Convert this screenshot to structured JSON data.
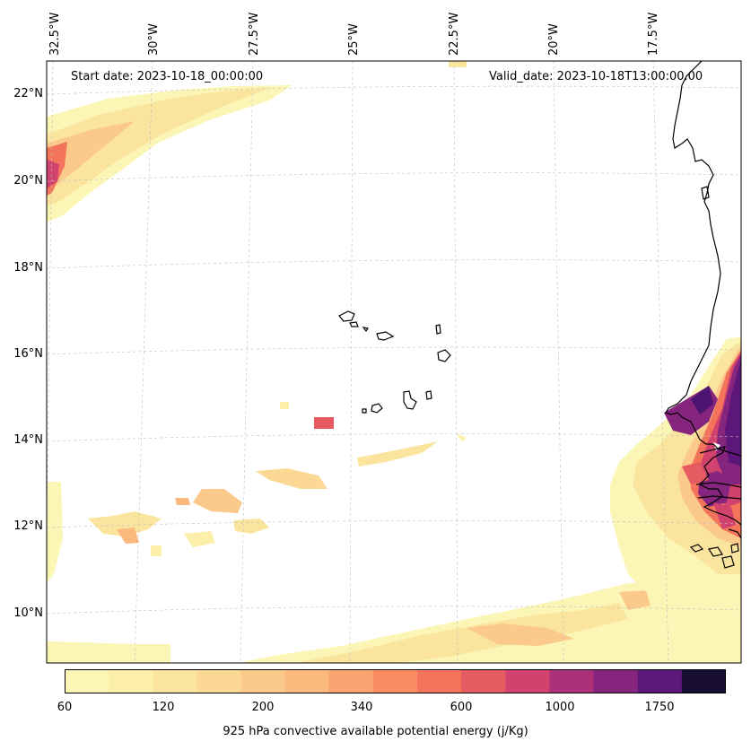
{
  "map": {
    "start_date": "Start date: 2023-10-18_00:00:00",
    "valid_date": "Valid_date: 2023-10-18T13:00:00.00",
    "lon_labels": [
      "32.5°W",
      "30°W",
      "27.5°W",
      "25°W",
      "22.5°W",
      "20°W",
      "17.5°W"
    ],
    "lat_labels": [
      "22°N",
      "20°N",
      "18°N",
      "16°N",
      "14°N",
      "12°N",
      "10°N"
    ],
    "colors": {
      "c0": "#fbf6b6",
      "c1": "#fae9a8",
      "c2": "#fbd593",
      "c3": "#fbba7d",
      "c4": "#fb9d6c",
      "c5": "#f37a62",
      "c6": "#e5536b",
      "c7": "#c83d7a",
      "c8": "#9c2f7e",
      "c9": "#72217c",
      "c10": "#4a1470",
      "c11": "#1b0d3d"
    }
  },
  "colorbar": {
    "ticks": [
      "60",
      "120",
      "200",
      "340",
      "600",
      "1000",
      "1750"
    ],
    "label": "925 hPa convective available potential energy (j/Kg)",
    "colors": [
      "#fbf6b6",
      "#fcefa9",
      "#fbe59e",
      "#fbd893",
      "#fbc98a",
      "#fbb97e",
      "#fba471",
      "#fb8c62",
      "#f3745a",
      "#e65a61",
      "#d2426f",
      "#ad317a",
      "#86257e",
      "#5d177a",
      "#180d33"
    ]
  }
}
